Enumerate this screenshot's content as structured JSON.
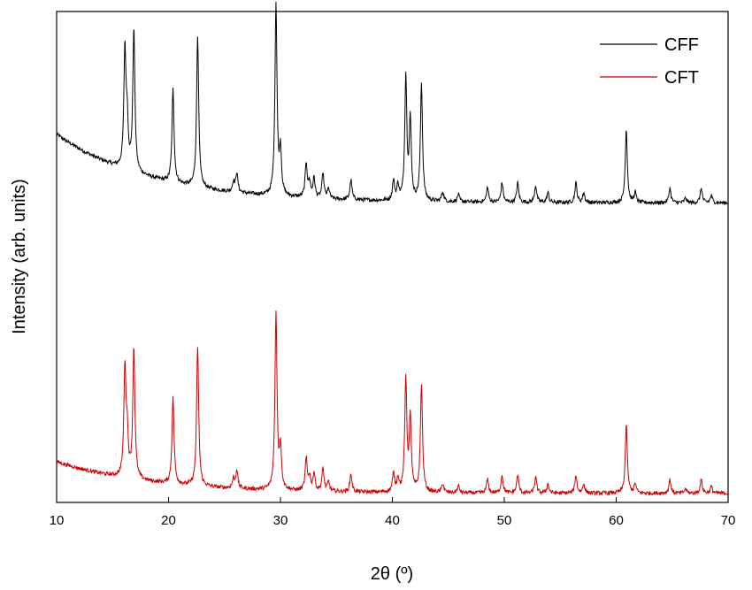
{
  "chart_data": {
    "type": "line",
    "xlabel": "2θ (º)",
    "ylabel": "Intensity (arb. units)",
    "xlim": [
      10,
      70
    ],
    "ylim": [
      0,
      1.0
    ],
    "x_ticks": [
      "10",
      "20",
      "30",
      "40",
      "50",
      "60",
      "70"
    ],
    "y_tick_labels_shown": false,
    "grid": false,
    "legend": {
      "position": "top-right"
    },
    "colors": {
      "CFF": "#000000",
      "CFT": "#cc0000"
    },
    "peaks": [
      [
        16.1,
        0.24
      ],
      [
        16.3,
        0.09
      ],
      [
        16.9,
        0.29
      ],
      [
        20.4,
        0.19
      ],
      [
        22.6,
        0.31
      ],
      [
        25.8,
        0.02
      ],
      [
        26.1,
        0.04
      ],
      [
        29.6,
        0.39
      ],
      [
        30.0,
        0.09
      ],
      [
        32.3,
        0.07
      ],
      [
        32.6,
        0.03
      ],
      [
        33.0,
        0.04
      ],
      [
        33.8,
        0.05
      ],
      [
        34.3,
        0.02
      ],
      [
        36.3,
        0.04
      ],
      [
        40.1,
        0.04
      ],
      [
        40.5,
        0.03
      ],
      [
        41.2,
        0.25
      ],
      [
        41.6,
        0.16
      ],
      [
        42.6,
        0.24
      ],
      [
        44.5,
        0.02
      ],
      [
        45.9,
        0.015
      ],
      [
        48.5,
        0.03
      ],
      [
        49.8,
        0.04
      ],
      [
        51.2,
        0.04
      ],
      [
        52.8,
        0.035
      ],
      [
        53.9,
        0.02
      ],
      [
        56.4,
        0.04
      ],
      [
        57.1,
        0.02
      ],
      [
        60.9,
        0.15
      ],
      [
        61.7,
        0.02
      ],
      [
        64.8,
        0.03
      ],
      [
        66.2,
        0.01
      ],
      [
        67.6,
        0.03
      ],
      [
        68.5,
        0.015
      ]
    ],
    "series": [
      {
        "name": "CFF",
        "offset": 0.59,
        "scale": 1.0,
        "baseline_start": 0.16
      },
      {
        "name": "CFT",
        "offset": 0.0,
        "scale": 0.92,
        "baseline_start": 0.09
      }
    ]
  }
}
